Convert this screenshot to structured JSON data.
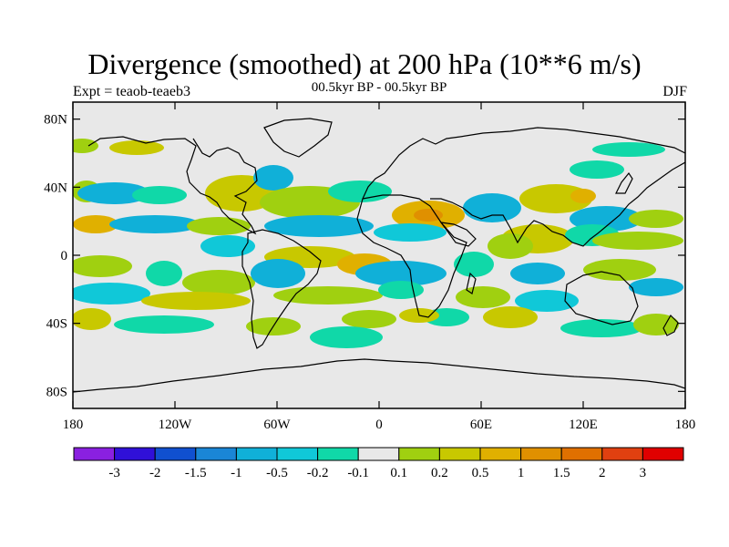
{
  "title": "Divergence (smoothed) at 200 hPa (10**6 m/s)",
  "left_label": "Expt = teaob-teaeb3",
  "center_label": "00.5kyr BP - 00.5kyr BP",
  "right_label": "DJF",
  "lat_ticks": [
    "80N",
    "40N",
    "0",
    "40S",
    "80S"
  ],
  "lon_ticks": [
    "180",
    "120W",
    "60W",
    "0",
    "60E",
    "120E",
    "180"
  ],
  "colorbar": {
    "labels": [
      "-3",
      "-2",
      "-1.5",
      "-1",
      "-0.5",
      "-0.2",
      "-0.1",
      "0.1",
      "0.2",
      "0.5",
      "1",
      "1.5",
      "2",
      "3"
    ],
    "colors": [
      "#8a20e0",
      "#3010d8",
      "#1050d0",
      "#1a86d6",
      "#10b0d8",
      "#10c8d8",
      "#10d8a8",
      "#e8e8e8",
      "#a0d010",
      "#c8c800",
      "#e0b000",
      "#e09000",
      "#e07000",
      "#e04010",
      "#e00000"
    ]
  },
  "field_colors": {
    "background": "#e8e8e8",
    "neg_weak": "#10d8a8",
    "neg_mid": "#10c8d8",
    "neg_strong": "#10b0d8",
    "pos_weak": "#a0d010",
    "pos_mid": "#c8c800",
    "pos_strong": "#e0b000",
    "pos_peak": "#e09000"
  }
}
